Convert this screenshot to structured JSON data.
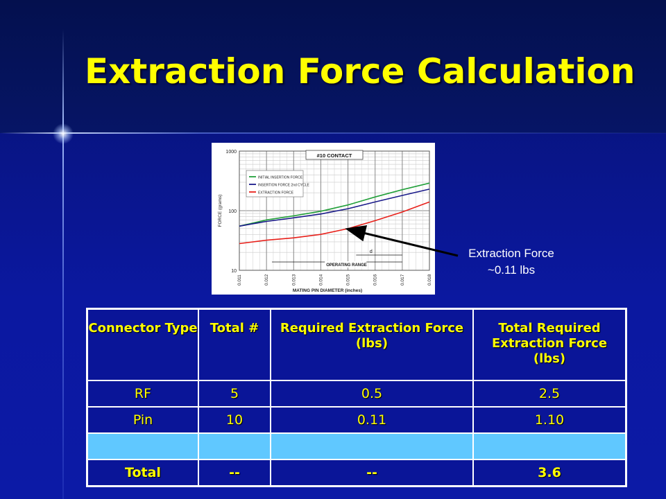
{
  "slide": {
    "title": "Extraction Force Calculation"
  },
  "callout": {
    "line1": "Extraction Force",
    "line2": "~0.11 lbs"
  },
  "chart_data": {
    "type": "line",
    "title": "#10 CONTACT",
    "xlabel": "MATING PIN DIAMETER (inches)",
    "ylabel": "FORCE (grams)",
    "yscale": "log",
    "ylim": [
      10,
      1000
    ],
    "xlim": [
      0.011,
      0.018
    ],
    "x_ticks": [
      "0.011",
      "0.012",
      "0.013",
      "0.014",
      "0.015",
      "0.016",
      "0.017",
      "0.018"
    ],
    "y_ticks": [
      "1000",
      "100",
      "10"
    ],
    "legend_position": "top-left",
    "annotations": [
      "d",
      "OPERATING RANGE"
    ],
    "series": [
      {
        "name": "INITIAL INSERTION FORCE",
        "color": "#22a03a",
        "x": [
          0.011,
          0.012,
          0.013,
          0.014,
          0.015,
          0.016,
          0.017,
          0.018
        ],
        "y": [
          55,
          70,
          82,
          98,
          125,
          170,
          225,
          290
        ]
      },
      {
        "name": "INSERTION FORCE 2nd CYCLE",
        "color": "#1a1a8a",
        "x": [
          0.011,
          0.012,
          0.013,
          0.014,
          0.015,
          0.016,
          0.017,
          0.018
        ],
        "y": [
          55,
          66,
          76,
          88,
          108,
          140,
          180,
          230
        ]
      },
      {
        "name": "EXTRACTION FORCE",
        "color": "#e8201a",
        "x": [
          0.011,
          0.012,
          0.013,
          0.014,
          0.015,
          0.016,
          0.017,
          0.018
        ],
        "y": [
          28,
          32,
          35,
          40,
          50,
          68,
          95,
          140
        ]
      }
    ]
  },
  "table": {
    "headers": [
      "Connector Type",
      "Total #",
      "Required Extraction Force (lbs)",
      "Total Required Extraction Force (lbs)"
    ],
    "rows": [
      [
        "RF",
        "5",
        "0.5",
        "2.5"
      ],
      [
        "Pin",
        "10",
        "0.11",
        "1.10"
      ],
      [
        "",
        "",
        "",
        ""
      ]
    ],
    "total": [
      "Total",
      "--",
      "--",
      "3.6"
    ]
  },
  "colors": {
    "title": "#ffff00",
    "background": "#0a1598",
    "highlight_row": "#60c8ff"
  }
}
